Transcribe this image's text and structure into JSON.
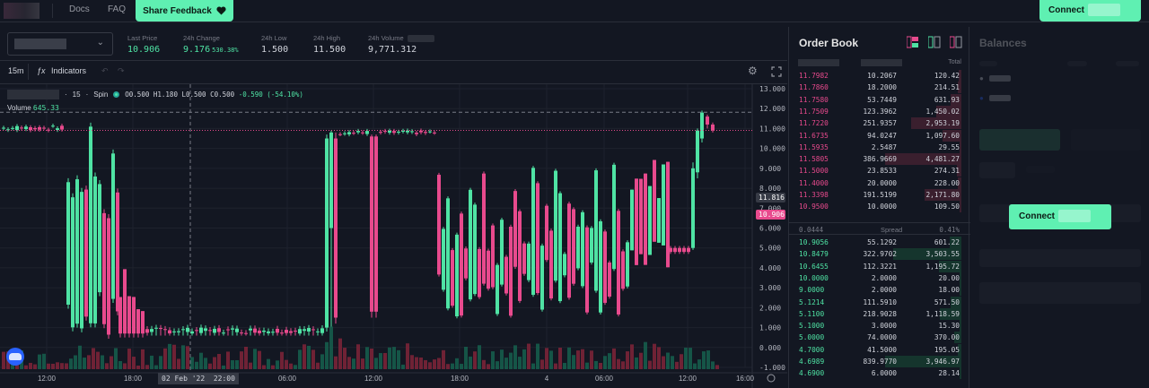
{
  "nav": {
    "docs": "Docs",
    "faq": "FAQ",
    "share_feedback": "Share Feedback",
    "connect": "Connect"
  },
  "market": {
    "last_price_label": "Last Price",
    "last_price": "10.906",
    "change_label": "24h Change",
    "change": "9.176",
    "change_pct": "530.38%",
    "low_label": "24h Low",
    "low": "1.500",
    "high_label": "24h High",
    "high": "11.500",
    "volume_label": "24h Volume",
    "volume": "9,771.312"
  },
  "toolbar": {
    "interval": "15m",
    "indicators": "Indicators"
  },
  "chart_legend": {
    "interval": "15",
    "source": "Spin",
    "o": "O0.500",
    "h": "H1.180",
    "l": "L0.500",
    "c": "C0.500",
    "chg": "-0.590 (-54.10%)",
    "volume_label": "Volume",
    "volume_value": "645.33"
  },
  "chart_tags": {
    "crosshair_price": "11.816",
    "last_price": "10.906",
    "crosshair_time_date": "02 Feb '22",
    "crosshair_time": "22:00"
  },
  "chart_data": {
    "type": "candlestick",
    "ylim": [
      -1.0,
      13.0
    ],
    "y_ticks": [
      "13.000",
      "12.000",
      "11.000",
      "10.000",
      "9.000",
      "8.000",
      "7.000",
      "6.000",
      "5.000",
      "4.000",
      "3.000",
      "2.000",
      "1.000",
      "0.000",
      "-1.000"
    ],
    "x_ticks": [
      "12:00",
      "18:00",
      "06:00",
      "12:00",
      "18:00",
      "4",
      "06:00",
      "12:00",
      "16:00"
    ],
    "colors": {
      "up": "#4fe3a4",
      "down": "#e84a8d"
    },
    "last_price": 10.906,
    "segments": [
      {
        "from": 0,
        "to": 70,
        "level": 11.0,
        "note": "flat near 11"
      },
      {
        "from": 75,
        "to": 130,
        "low": 1.0,
        "high": 11.5
      },
      {
        "from": 130,
        "to": 360,
        "level": 0.7
      },
      {
        "from": 365,
        "to": 480,
        "level": 10.8
      },
      {
        "from": 490,
        "to": 700,
        "low": 1.5,
        "high": 9.5
      },
      {
        "from": 700,
        "to": 800,
        "low": 4.8,
        "high": 11.5
      }
    ]
  },
  "orderbook": {
    "title": "Order Book",
    "total_label": "Total",
    "asks": [
      {
        "price": "11.7982",
        "size": "10.2067",
        "total": "120.42",
        "depth": 0.03
      },
      {
        "price": "11.7860",
        "size": "18.2000",
        "total": "214.51",
        "depth": 0.05
      },
      {
        "price": "11.7580",
        "size": "53.7449",
        "total": "631.93",
        "depth": 0.14
      },
      {
        "price": "11.7509",
        "size": "123.3962",
        "total": "1,450.02",
        "depth": 0.33
      },
      {
        "price": "11.7220",
        "size": "251.9357",
        "total": "2,953.19",
        "depth": 0.66
      },
      {
        "price": "11.6735",
        "size": "94.0247",
        "total": "1,097.60",
        "depth": 0.25
      },
      {
        "price": "11.5935",
        "size": "2.5487",
        "total": "29.55",
        "depth": 0.01
      },
      {
        "price": "11.5805",
        "size": "386.9669",
        "total": "4,481.27",
        "depth": 1.0
      },
      {
        "price": "11.5000",
        "size": "23.8533",
        "total": "274.31",
        "depth": 0.06
      },
      {
        "price": "11.4000",
        "size": "20.0000",
        "total": "228.00",
        "depth": 0.05
      },
      {
        "price": "11.3398",
        "size": "191.5199",
        "total": "2,171.80",
        "depth": 0.48
      },
      {
        "price": "10.9500",
        "size": "10.0000",
        "total": "109.50",
        "depth": 0.02
      }
    ],
    "spread_value": "0.0444",
    "spread_label": "Spread",
    "spread_pct": "0.41%",
    "bids": [
      {
        "price": "10.9056",
        "size": "55.1292",
        "total": "601.22",
        "depth": 0.15
      },
      {
        "price": "10.8479",
        "size": "322.9702",
        "total": "3,503.55",
        "depth": 0.89
      },
      {
        "price": "10.6455",
        "size": "112.3221",
        "total": "1,195.72",
        "depth": 0.3
      },
      {
        "price": "10.0000",
        "size": "2.0000",
        "total": "20.00",
        "depth": 0.01
      },
      {
        "price": "9.0000",
        "size": "2.0000",
        "total": "18.00",
        "depth": 0.01
      },
      {
        "price": "5.1214",
        "size": "111.5910",
        "total": "571.50",
        "depth": 0.14
      },
      {
        "price": "5.1100",
        "size": "218.9028",
        "total": "1,118.59",
        "depth": 0.28
      },
      {
        "price": "5.1000",
        "size": "3.0000",
        "total": "15.30",
        "depth": 0.01
      },
      {
        "price": "5.0000",
        "size": "74.0000",
        "total": "370.00",
        "depth": 0.09
      },
      {
        "price": "4.7000",
        "size": "41.5000",
        "total": "195.05",
        "depth": 0.05
      },
      {
        "price": "4.6989",
        "size": "839.9770",
        "total": "3,946.97",
        "depth": 1.0
      },
      {
        "price": "4.6900",
        "size": "6.0000",
        "total": "28.14",
        "depth": 0.01
      }
    ]
  },
  "balances": {
    "title": "Balances",
    "connect": "Connect"
  }
}
